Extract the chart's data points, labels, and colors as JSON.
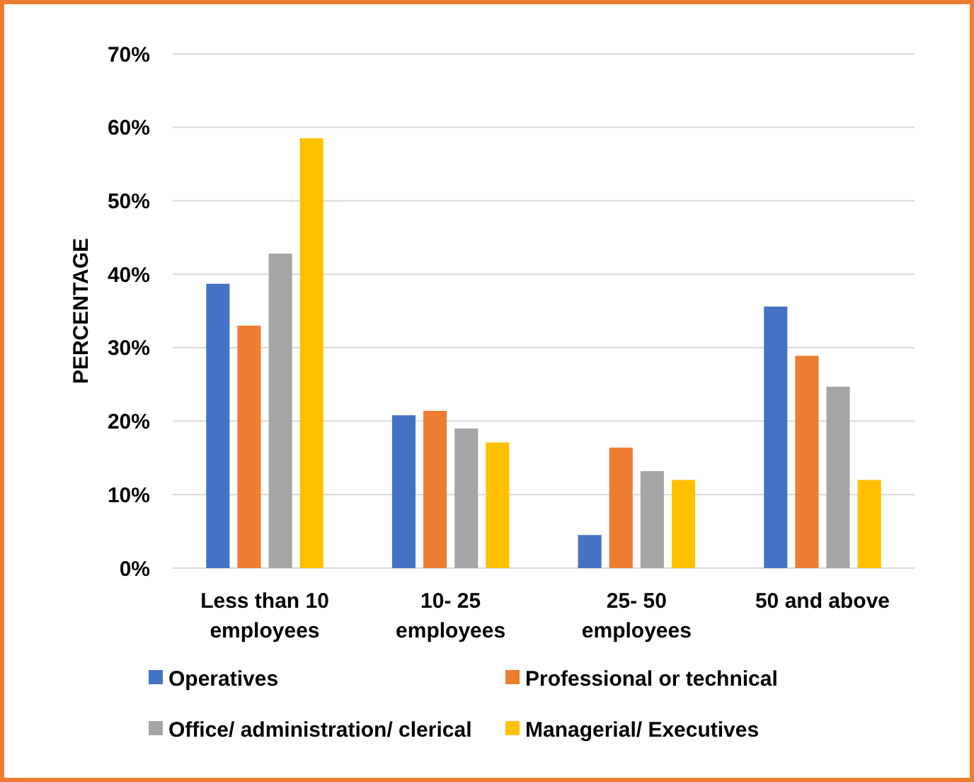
{
  "chart_data": {
    "type": "bar",
    "ylabel": "PERCENTAGE",
    "categories": [
      "Less than 10 employees",
      "10- 25 employees",
      "25- 50 employees",
      "50 and above"
    ],
    "series": [
      {
        "name": "Operatives",
        "color": "#4472c4",
        "values": [
          38.7,
          20.8,
          4.5,
          35.6
        ]
      },
      {
        "name": "Professional or technical",
        "color": "#ed7d31",
        "values": [
          33.0,
          21.4,
          16.4,
          28.9
        ]
      },
      {
        "name": "Office/ administration/ clerical",
        "color": "#a5a5a5",
        "values": [
          42.8,
          19.0,
          13.2,
          24.7
        ]
      },
      {
        "name": "Managerial/ Executives",
        "color": "#ffc000",
        "values": [
          58.5,
          17.1,
          12.0,
          12.0
        ]
      }
    ],
    "ylim": [
      0,
      70
    ],
    "yticks": [
      {
        "value": 0,
        "label": "0%"
      },
      {
        "value": 10,
        "label": "10%"
      },
      {
        "value": 20,
        "label": "20%"
      },
      {
        "value": 30,
        "label": "30%"
      },
      {
        "value": 40,
        "label": "40%"
      },
      {
        "value": 50,
        "label": "50%"
      },
      {
        "value": 60,
        "label": "60%"
      },
      {
        "value": 70,
        "label": "70%"
      }
    ],
    "grid": "y",
    "legend": "bottom"
  }
}
